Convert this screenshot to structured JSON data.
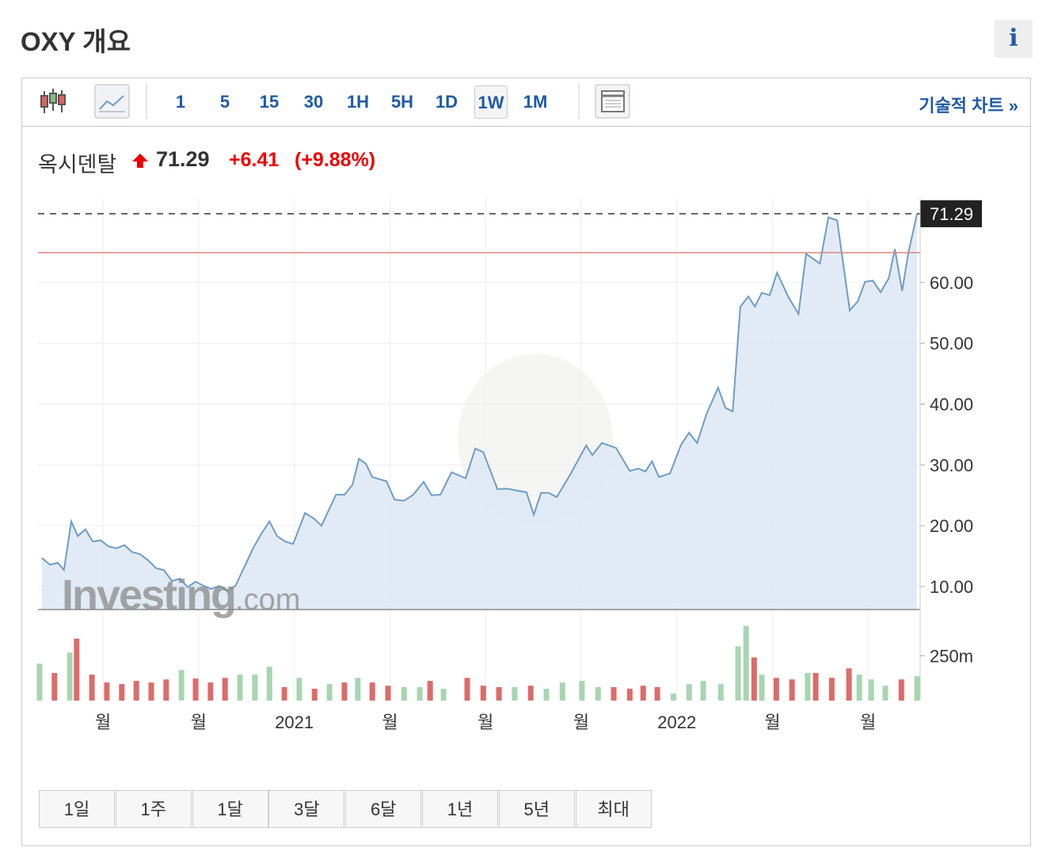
{
  "header": {
    "title": "OXY 개요",
    "info": "i"
  },
  "toolbar": {
    "intervals": [
      "1",
      "5",
      "15",
      "30",
      "1H",
      "5H",
      "1D",
      "1W",
      "1M"
    ],
    "selected_index": 7,
    "link": "기술적 차트 »"
  },
  "quote": {
    "name": "옥시덴탈",
    "price": "71.29",
    "change": "+6.41",
    "change_pct": "(+9.88%)"
  },
  "watermark": [
    "Investing",
    ".com"
  ],
  "ranges": [
    "1일",
    "1주",
    "1달",
    "3달",
    "6달",
    "1년",
    "5년",
    "최대"
  ],
  "chart_data": [
    {
      "type": "line",
      "area": true,
      "color": "#6d9dc5",
      "fill": "#dde7f3",
      "grid": true,
      "reference_line": 64.88,
      "reference_color": "#e08585",
      "x": [
        2020.34,
        2020.361,
        2020.382,
        2020.398,
        2020.417,
        2020.434,
        2020.454,
        2020.473,
        2020.494,
        2020.514,
        2020.535,
        2020.556,
        2020.576,
        2020.597,
        2020.618,
        2020.639,
        2020.659,
        2020.68,
        2020.701,
        2020.721,
        2020.742,
        2020.763,
        2020.783,
        2020.804,
        2020.825,
        2020.846,
        2020.87,
        2020.893,
        2020.914,
        2020.935,
        2020.955,
        2020.976,
        2020.997,
        2021.028,
        2021.051,
        2021.071,
        2021.109,
        2021.131,
        2021.152,
        2021.169,
        2021.187,
        2021.204,
        2021.241,
        2021.262,
        2021.287,
        2021.311,
        2021.338,
        2021.359,
        2021.382,
        2021.411,
        2021.448,
        2021.473,
        2021.494,
        2021.531,
        2021.556,
        2021.581,
        2021.607,
        2021.626,
        2021.645,
        2021.665,
        2021.686,
        2021.721,
        2021.763,
        2021.779,
        2021.804,
        2021.841,
        2021.877,
        2021.899,
        2021.918,
        2021.935,
        2021.953,
        2021.982,
        2022.011,
        2022.032,
        2022.053,
        2022.077,
        2022.108,
        2022.127,
        2022.146,
        2022.166,
        2022.187,
        2022.204,
        2022.222,
        2022.243,
        2022.262,
        2022.291,
        2022.318,
        2022.338,
        2022.374,
        2022.396,
        2022.419,
        2022.452,
        2022.473,
        2022.492,
        2022.512,
        2022.533,
        2022.554,
        2022.57,
        2022.589,
        2022.605,
        2022.628
      ],
      "values": [
        14.7,
        13.6,
        13.9,
        12.7,
        20.7,
        18.3,
        19.4,
        17.4,
        17.6,
        16.6,
        16.3,
        16.8,
        15.7,
        15.3,
        14.3,
        13.0,
        12.7,
        10.9,
        11.3,
        9.9,
        10.8,
        10.1,
        9.6,
        10.1,
        9.3,
        10.1,
        13.3,
        16.4,
        18.7,
        20.7,
        18.3,
        17.4,
        17.0,
        22.1,
        21.2,
        20.0,
        25.1,
        25.1,
        26.7,
        31.0,
        30.2,
        28.0,
        27.3,
        24.3,
        24.1,
        25.1,
        27.2,
        25.0,
        25.1,
        28.8,
        27.8,
        32.7,
        32.1,
        26.0,
        26.1,
        25.8,
        25.5,
        21.8,
        25.4,
        25.4,
        24.7,
        28.4,
        33.2,
        31.6,
        33.6,
        32.8,
        29.0,
        29.4,
        28.9,
        30.6,
        28.0,
        28.6,
        33.3,
        35.3,
        33.6,
        38.3,
        42.7,
        39.4,
        38.8,
        56.0,
        57.7,
        56.0,
        58.3,
        57.9,
        61.6,
        57.7,
        54.8,
        64.7,
        63.1,
        70.7,
        70.2,
        55.4,
        56.9,
        60.1,
        60.3,
        58.4,
        60.7,
        65.5,
        58.6,
        64.8,
        71.29
      ],
      "xlim": [
        2020.33,
        2022.636
      ],
      "ylim": [
        6.22,
        73.9
      ],
      "xticks": [
        {
          "value": 2020.5,
          "label": "월"
        },
        {
          "value": 2020.75,
          "label": "월"
        },
        2021,
        {
          "value": 2021.25,
          "label": "월"
        },
        {
          "value": 2021.5,
          "label": "월"
        },
        {
          "value": 2021.75,
          "label": "월"
        },
        2022,
        {
          "value": 2022.25,
          "label": "월"
        },
        {
          "value": 2022.5,
          "label": "월"
        }
      ],
      "yticks": [
        {
          "value": 10,
          "label": "10.00"
        },
        {
          "value": 20,
          "label": "20.00"
        },
        {
          "value": 30,
          "label": "30.00"
        },
        {
          "value": 40,
          "label": "40.00"
        },
        {
          "value": 50,
          "label": "50.00"
        },
        {
          "value": 60,
          "label": "60.00"
        }
      ]
    },
    {
      "type": "bar",
      "x": [
        2020.334,
        2020.373,
        2020.413,
        2020.431,
        2020.471,
        2020.51,
        2020.549,
        2020.587,
        2020.626,
        2020.665,
        2020.705,
        2020.742,
        2020.781,
        2020.819,
        2020.858,
        2020.897,
        2020.935,
        2020.974,
        2021.013,
        2021.053,
        2021.092,
        2021.131,
        2021.166,
        2021.204,
        2021.245,
        2021.287,
        2021.328,
        2021.355,
        2021.39,
        2021.452,
        2021.494,
        2021.535,
        2021.576,
        2021.618,
        2021.659,
        2021.701,
        2021.752,
        2021.794,
        2021.835,
        2021.877,
        2021.912,
        2021.949,
        2021.991,
        2022.032,
        2022.069,
        2022.115,
        2022.16,
        2022.181,
        2022.202,
        2022.222,
        2022.26,
        2022.301,
        2022.342,
        2022.363,
        2022.405,
        2022.45,
        2022.477,
        2022.508,
        2022.545,
        2022.587,
        2022.628
      ],
      "values": [
        206,
        154,
        268,
        346,
        145,
        101,
        92,
        110,
        101,
        118,
        171,
        123,
        101,
        127,
        145,
        145,
        189,
        75,
        127,
        66,
        92,
        101,
        127,
        101,
        83,
        75,
        75,
        110,
        66,
        127,
        83,
        75,
        75,
        83,
        66,
        101,
        110,
        75,
        75,
        66,
        83,
        75,
        39,
        92,
        110,
        92,
        303,
        417,
        241,
        145,
        127,
        118,
        154,
        154,
        127,
        180,
        145,
        118,
        83,
        118,
        136
      ],
      "colors": [
        "#a8d5b0",
        "#dd6b6b",
        "#a8d5b0",
        "#dd6b6b",
        "#dd6b6b",
        "#dd6b6b",
        "#dd6b6b",
        "#dd6b6b",
        "#dd6b6b",
        "#dd6b6b",
        "#a8d5b0",
        "#dd6b6b",
        "#dd6b6b",
        "#dd6b6b",
        "#a8d5b0",
        "#a8d5b0",
        "#a8d5b0",
        "#dd6b6b",
        "#a8d5b0",
        "#dd6b6b",
        "#a8d5b0",
        "#dd6b6b",
        "#a8d5b0",
        "#dd6b6b",
        "#dd6b6b",
        "#a8d5b0",
        "#a8d5b0",
        "#dd6b6b",
        "#a8d5b0",
        "#dd6b6b",
        "#dd6b6b",
        "#dd6b6b",
        "#a8d5b0",
        "#dd6b6b",
        "#a8d5b0",
        "#a8d5b0",
        "#a8d5b0",
        "#a8d5b0",
        "#dd6b6b",
        "#dd6b6b",
        "#dd6b6b",
        "#dd6b6b",
        "#a8d5b0",
        "#a8d5b0",
        "#a8d5b0",
        "#a8d5b0",
        "#a8d5b0",
        "#a8d5b0",
        "#dd6b6b",
        "#a8d5b0",
        "#dd6b6b",
        "#dd6b6b",
        "#a8d5b0",
        "#dd6b6b",
        "#dd6b6b",
        "#dd6b6b",
        "#a8d5b0",
        "#a8d5b0",
        "#a8d5b0",
        "#dd6b6b",
        "#a8d5b0"
      ],
      "xlim": [
        2020.33,
        2022.636
      ],
      "ylim": [
        0,
        420
      ],
      "yticks": [
        {
          "value": 250,
          "label": "250m"
        }
      ]
    }
  ]
}
